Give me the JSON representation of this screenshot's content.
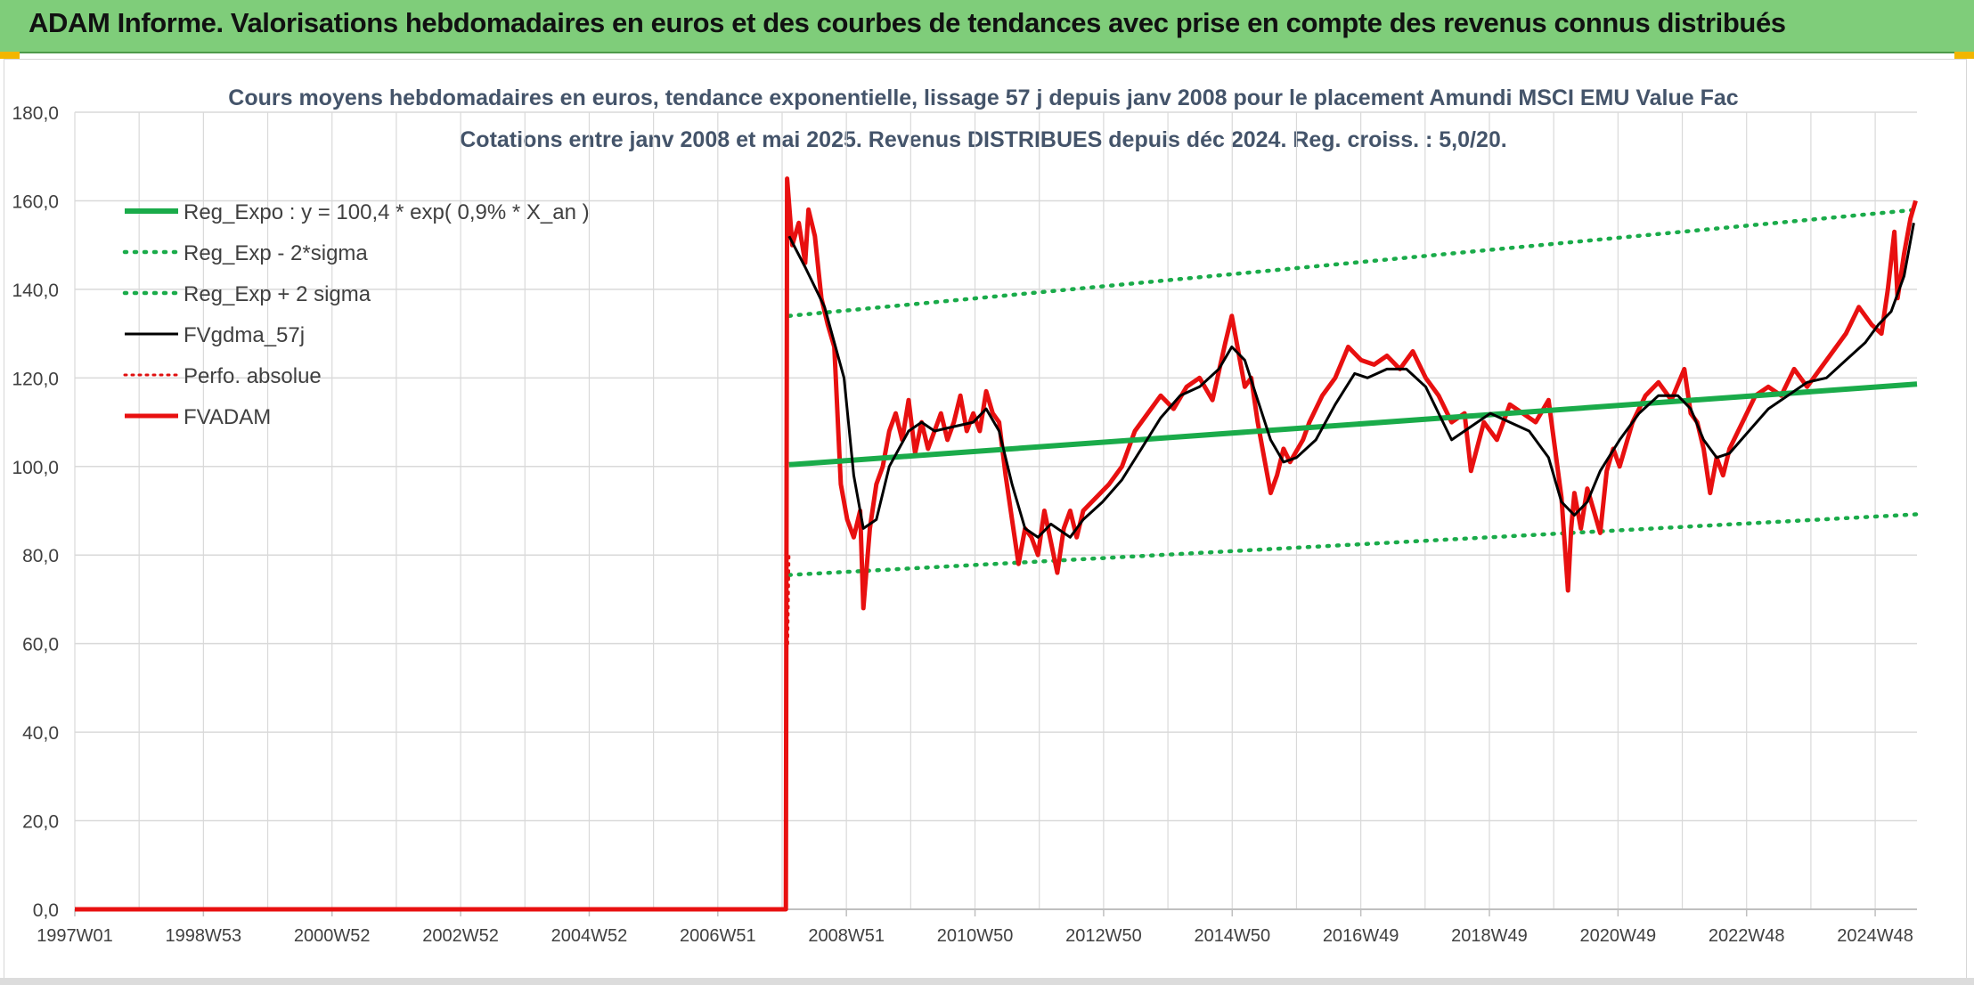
{
  "banner": {
    "title": "ADAM Informe. Valorisations hebdomadaires en euros et des courbes de tendances avec prise en compte des revenus connus distribués"
  },
  "colors": {
    "banner_bg": "#7fcd7a",
    "reg_expo": "#1aab4a",
    "fvgdma": "#000000",
    "perfo": "#e01010",
    "fvadam": "#e81010",
    "grid": "#d9d9d9",
    "title_text": "#44546a"
  },
  "chart_data": {
    "type": "line",
    "title": "Cours moyens hebdomadaires en euros, tendance exponentielle, lissage 57 j depuis janv 2008 pour le placement Amundi MSCI EMU Value Fac",
    "subtitle": "Cotations entre janv 2008 et mai 2025. Revenus DISTRIBUES depuis déc 2024. Reg. croiss. : 5,0/20.",
    "xlabel": "",
    "ylabel": "",
    "ylim": [
      0,
      180
    ],
    "y_ticks": [
      "0,0",
      "20,0",
      "40,0",
      "60,0",
      "80,0",
      "100,0",
      "120,0",
      "140,0",
      "160,0",
      "180,0"
    ],
    "x_range": [
      1997.0,
      2025.5
    ],
    "x_tick_labels": [
      "1997W01",
      "1998W53",
      "2000W52",
      "2002W52",
      "2004W52",
      "2006W51",
      "2008W51",
      "2010W50",
      "2012W50",
      "2014W50",
      "2016W49",
      "2018W49",
      "2020W49",
      "2022W48",
      "2024W48"
    ],
    "grid": true,
    "legend_position": "top-left",
    "legend": [
      "Reg_Expo : y = 100,4 * exp( 0,9% *  X_an )",
      "Reg_Exp - 2*sigma",
      "Reg_Exp + 2 sigma",
      "FVgdma_57j",
      "Perfo. absolue",
      "FVADAM"
    ],
    "series": [
      {
        "name": "Reg_Expo : y = 100,4 * exp( 0,9% *  X_an )",
        "style": "solid-thick",
        "x": [
          2008.05,
          2025.5
        ],
        "values": [
          100.4,
          118.6
        ]
      },
      {
        "name": "Reg_Exp - 2*sigma",
        "style": "dotted",
        "x": [
          2008.05,
          2025.5
        ],
        "values": [
          75.5,
          89.2
        ]
      },
      {
        "name": "Reg_Exp + 2 sigma",
        "style": "dotted",
        "x": [
          2008.05,
          2025.5
        ],
        "values": [
          134.0,
          158.0
        ]
      },
      {
        "name": "FVgdma_57j",
        "style": "solid",
        "x": [
          2008.05,
          2008.3,
          2008.6,
          2008.9,
          2009.05,
          2009.2,
          2009.4,
          2009.6,
          2009.9,
          2010.1,
          2010.3,
          2010.6,
          2010.9,
          2011.1,
          2011.3,
          2011.5,
          2011.7,
          2011.9,
          2012.1,
          2012.4,
          2012.6,
          2012.9,
          2013.2,
          2013.5,
          2013.8,
          2014.1,
          2014.4,
          2014.7,
          2014.9,
          2015.1,
          2015.3,
          2015.5,
          2015.7,
          2015.9,
          2016.2,
          2016.5,
          2016.8,
          2017.0,
          2017.3,
          2017.6,
          2017.9,
          2018.1,
          2018.3,
          2018.6,
          2018.9,
          2019.2,
          2019.5,
          2019.8,
          2020.0,
          2020.2,
          2020.4,
          2020.6,
          2020.9,
          2021.2,
          2021.5,
          2021.8,
          2022.0,
          2022.2,
          2022.4,
          2022.6,
          2022.9,
          2023.2,
          2023.5,
          2023.8,
          2024.1,
          2024.4,
          2024.7,
          2024.9,
          2025.1,
          2025.3,
          2025.45
        ],
        "values": [
          152,
          145,
          136,
          120,
          98,
          86,
          88,
          100,
          108,
          110,
          108,
          109,
          110,
          113,
          108,
          96,
          86,
          84,
          87,
          84,
          88,
          92,
          97,
          104,
          111,
          116,
          118,
          122,
          127,
          124,
          115,
          106,
          101,
          102,
          106,
          114,
          121,
          120,
          122,
          122,
          118,
          112,
          106,
          109,
          112,
          110,
          108,
          102,
          92,
          89,
          92,
          99,
          106,
          112,
          116,
          116,
          113,
          106,
          102,
          103,
          108,
          113,
          116,
          119,
          120,
          124,
          128,
          132,
          135,
          143,
          155
        ]
      },
      {
        "name": "Perfo. absolue",
        "style": "dotted",
        "x": [
          2008.03,
          2008.05
        ],
        "values": [
          60,
          80
        ]
      },
      {
        "name": "FVADAM",
        "style": "solid-thick",
        "x": [
          1997.0,
          2008.0,
          2008.02,
          2008.1,
          2008.2,
          2008.3,
          2008.35,
          2008.45,
          2008.55,
          2008.65,
          2008.75,
          2008.85,
          2008.95,
          2009.05,
          2009.15,
          2009.2,
          2009.3,
          2009.4,
          2009.5,
          2009.6,
          2009.7,
          2009.8,
          2009.9,
          2010.0,
          2010.1,
          2010.2,
          2010.3,
          2010.4,
          2010.5,
          2010.6,
          2010.7,
          2010.8,
          2010.9,
          2011.0,
          2011.1,
          2011.2,
          2011.3,
          2011.4,
          2011.5,
          2011.6,
          2011.7,
          2011.8,
          2011.9,
          2012.0,
          2012.1,
          2012.2,
          2012.3,
          2012.4,
          2012.5,
          2012.6,
          2012.8,
          2013.0,
          2013.2,
          2013.4,
          2013.6,
          2013.8,
          2014.0,
          2014.2,
          2014.4,
          2014.6,
          2014.8,
          2014.9,
          2015.0,
          2015.1,
          2015.2,
          2015.3,
          2015.4,
          2015.5,
          2015.6,
          2015.7,
          2015.8,
          2016.0,
          2016.1,
          2016.3,
          2016.5,
          2016.7,
          2016.9,
          2017.1,
          2017.3,
          2017.5,
          2017.7,
          2017.9,
          2018.1,
          2018.3,
          2018.5,
          2018.6,
          2018.8,
          2019.0,
          2019.2,
          2019.4,
          2019.6,
          2019.8,
          2020.0,
          2020.1,
          2020.15,
          2020.2,
          2020.3,
          2020.4,
          2020.5,
          2020.6,
          2020.7,
          2020.8,
          2020.9,
          2021.1,
          2021.3,
          2021.5,
          2021.7,
          2021.9,
          2022.0,
          2022.1,
          2022.2,
          2022.3,
          2022.4,
          2022.5,
          2022.6,
          2022.8,
          2023.0,
          2023.2,
          2023.4,
          2023.6,
          2023.8,
          2024.0,
          2024.2,
          2024.4,
          2024.6,
          2024.8,
          2024.95,
          2025.05,
          2025.15,
          2025.2,
          2025.3,
          2025.4,
          2025.48
        ],
        "values": [
          0,
          0,
          165,
          150,
          155,
          146,
          158,
          152,
          138,
          132,
          127,
          96,
          88,
          84,
          90,
          68,
          86,
          96,
          100,
          108,
          112,
          106,
          115,
          103,
          110,
          104,
          108,
          112,
          106,
          110,
          116,
          108,
          112,
          108,
          117,
          112,
          110,
          98,
          88,
          78,
          86,
          84,
          80,
          90,
          83,
          76,
          86,
          90,
          84,
          90,
          93,
          96,
          100,
          108,
          112,
          116,
          113,
          118,
          120,
          115,
          128,
          134,
          126,
          118,
          120,
          110,
          102,
          94,
          98,
          104,
          101,
          106,
          110,
          116,
          120,
          127,
          124,
          123,
          125,
          122,
          126,
          120,
          116,
          110,
          112,
          99,
          110,
          106,
          114,
          112,
          110,
          115,
          93,
          72,
          86,
          94,
          86,
          95,
          90,
          85,
          99,
          104,
          100,
          110,
          116,
          119,
          115,
          122,
          112,
          110,
          104,
          94,
          102,
          98,
          104,
          110,
          116,
          118,
          116,
          122,
          118,
          122,
          126,
          130,
          136,
          132,
          130,
          140,
          153,
          138,
          148,
          156,
          160
        ]
      }
    ]
  }
}
